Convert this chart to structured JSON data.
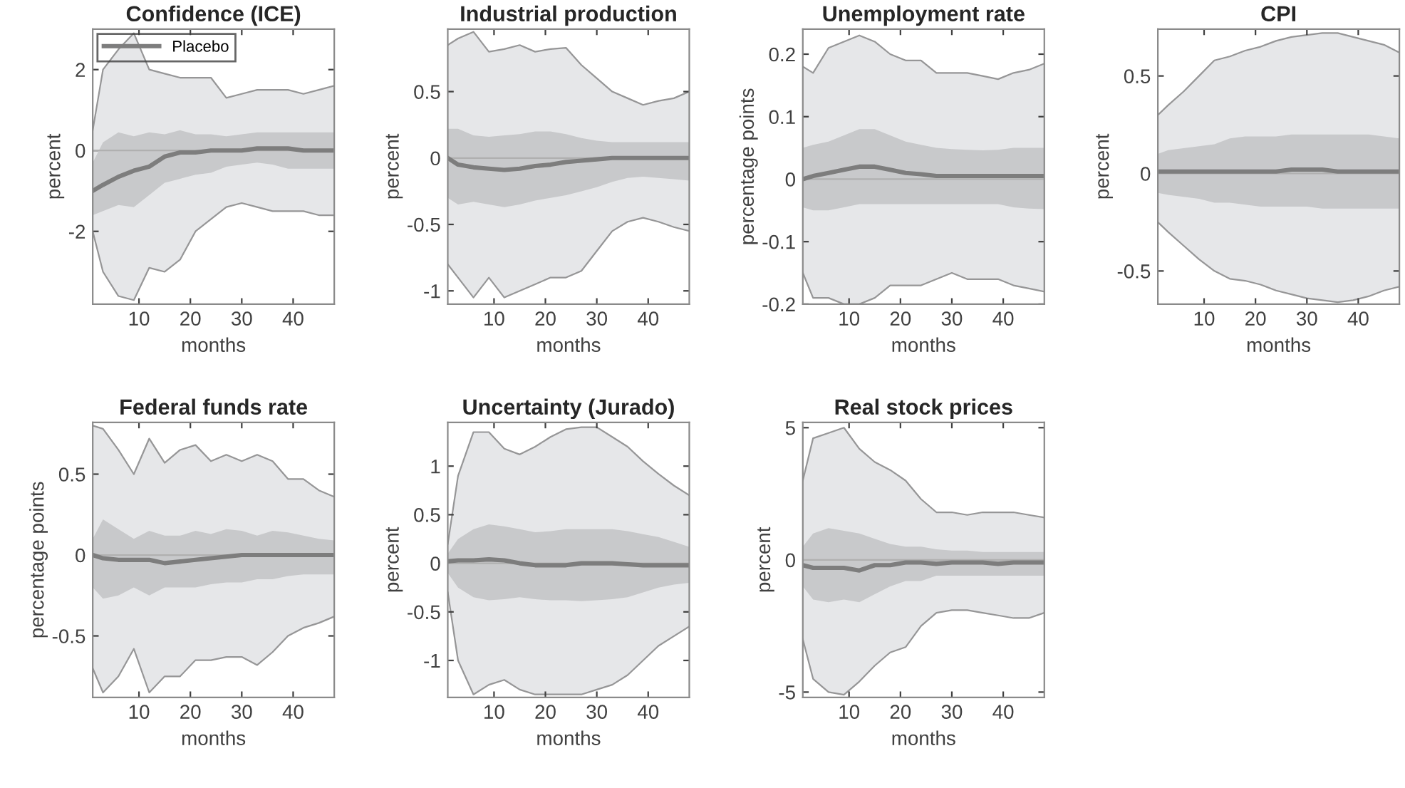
{
  "chart_data": [
    {
      "type": "line",
      "title": "Confidence (ICE)",
      "xlabel": "months",
      "ylabel": "percent",
      "x": [
        1,
        3,
        6,
        9,
        12,
        15,
        18,
        21,
        24,
        27,
        30,
        33,
        36,
        39,
        42,
        45,
        48
      ],
      "xlim": [
        1,
        48
      ],
      "xticks": [
        10,
        20,
        30,
        40
      ],
      "ylim": [
        -3.8,
        3.0
      ],
      "yticks": [
        -2,
        0,
        2
      ],
      "legend": "top left",
      "grid": false,
      "ref_lines": [
        {
          "axis": "y",
          "value": 0,
          "color": "#b0b0b0"
        }
      ],
      "series": [
        {
          "type": "area",
          "color": "#e6e7e9",
          "values": [
            0.5,
            2.0,
            2.5,
            2.9,
            2.0,
            1.9,
            1.8,
            1.8,
            1.8,
            1.3,
            1.4,
            1.5,
            1.5,
            1.5,
            1.4,
            1.5,
            1.6
          ]
        },
        {
          "type": "area",
          "color": "#e6e7e9",
          "values": [
            -2.0,
            -3.0,
            -3.6,
            -3.7,
            -2.9,
            -3.0,
            -2.7,
            -2.0,
            -1.7,
            -1.4,
            -1.3,
            -1.4,
            -1.5,
            -1.5,
            -1.5,
            -1.6,
            -1.6
          ]
        },
        {
          "name": "Placebo",
          "color": "#7d7d7d",
          "values": [
            -1.0,
            -0.85,
            -0.65,
            -0.5,
            -0.4,
            -0.15,
            -0.05,
            -0.05,
            0,
            0,
            0,
            0.05,
            0.05,
            0.05,
            0.0,
            0.0,
            0.0
          ],
          "lower": [
            -1.6,
            -1.5,
            -1.35,
            -1.4,
            -1.1,
            -0.8,
            -0.7,
            -0.6,
            -0.55,
            -0.4,
            -0.35,
            -0.3,
            -0.35,
            -0.45,
            -0.45,
            -0.45,
            -0.45
          ],
          "upper": [
            -0.3,
            0.2,
            0.45,
            0.35,
            0.45,
            0.4,
            0.5,
            0.4,
            0.4,
            0.35,
            0.4,
            0.45,
            0.45,
            0.45,
            0.45,
            0.45,
            0.45
          ]
        }
      ]
    },
    {
      "type": "line",
      "title": "Industrial production",
      "xlabel": "months",
      "ylabel": "percent",
      "x": [
        1,
        3,
        6,
        9,
        12,
        15,
        18,
        21,
        24,
        27,
        30,
        33,
        36,
        39,
        42,
        45,
        48
      ],
      "xlim": [
        1,
        48
      ],
      "xticks": [
        10,
        20,
        30,
        40
      ],
      "ylim": [
        -1.1,
        0.97
      ],
      "yticks": [
        -1,
        -0.5,
        0,
        0.5
      ],
      "grid": false,
      "ref_lines": [
        {
          "axis": "y",
          "value": 0,
          "color": "#b0b0b0"
        }
      ],
      "series": [
        {
          "type": "area",
          "color": "#e6e7e9",
          "values": [
            0.85,
            0.9,
            0.95,
            0.8,
            0.82,
            0.85,
            0.8,
            0.82,
            0.83,
            0.7,
            0.6,
            0.5,
            0.45,
            0.4,
            0.43,
            0.45,
            0.5
          ]
        },
        {
          "type": "area",
          "color": "#e6e7e9",
          "values": [
            -0.8,
            -0.9,
            -1.05,
            -0.9,
            -1.05,
            -1.0,
            -0.95,
            -0.9,
            -0.9,
            -0.85,
            -0.7,
            -0.55,
            -0.48,
            -0.45,
            -0.48,
            -0.52,
            -0.55
          ]
        },
        {
          "color": "#7d7d7d",
          "values": [
            0,
            -0.05,
            -0.07,
            -0.08,
            -0.09,
            -0.08,
            -0.06,
            -0.05,
            -0.03,
            -0.02,
            -0.01,
            0,
            0,
            0,
            0,
            0,
            0
          ],
          "lower": [
            -0.3,
            -0.35,
            -0.33,
            -0.35,
            -0.37,
            -0.35,
            -0.32,
            -0.3,
            -0.28,
            -0.25,
            -0.22,
            -0.18,
            -0.15,
            -0.14,
            -0.15,
            -0.16,
            -0.17
          ],
          "upper": [
            0.22,
            0.22,
            0.17,
            0.16,
            0.17,
            0.18,
            0.2,
            0.2,
            0.18,
            0.15,
            0.13,
            0.12,
            0.12,
            0.12,
            0.12,
            0.12,
            0.12
          ]
        }
      ]
    },
    {
      "type": "line",
      "title": "Unemployment rate",
      "xlabel": "months",
      "ylabel": "percentage points",
      "x": [
        1,
        3,
        6,
        9,
        12,
        15,
        18,
        21,
        24,
        27,
        30,
        33,
        36,
        39,
        42,
        45,
        48
      ],
      "xlim": [
        1,
        48
      ],
      "xticks": [
        10,
        20,
        30,
        40
      ],
      "ylim": [
        -0.2,
        0.24
      ],
      "yticks": [
        -0.2,
        -0.1,
        0,
        0.1,
        0.2
      ],
      "grid": false,
      "ref_lines": [
        {
          "axis": "y",
          "value": 0,
          "color": "#b0b0b0"
        }
      ],
      "series": [
        {
          "type": "area",
          "color": "#e6e7e9",
          "values": [
            0.18,
            0.17,
            0.21,
            0.22,
            0.23,
            0.22,
            0.2,
            0.19,
            0.19,
            0.17,
            0.17,
            0.17,
            0.165,
            0.16,
            0.17,
            0.175,
            0.185
          ]
        },
        {
          "type": "area",
          "color": "#e6e7e9",
          "values": [
            -0.15,
            -0.19,
            -0.19,
            -0.2,
            -0.2,
            -0.19,
            -0.17,
            -0.17,
            -0.17,
            -0.16,
            -0.15,
            -0.16,
            -0.16,
            -0.16,
            -0.17,
            -0.175,
            -0.18
          ]
        },
        {
          "color": "#7d7d7d",
          "values": [
            0,
            0.005,
            0.01,
            0.015,
            0.02,
            0.02,
            0.015,
            0.01,
            0.008,
            0.005,
            0.005,
            0.005,
            0.005,
            0.005,
            0.005,
            0.005,
            0.005
          ],
          "lower": [
            -0.045,
            -0.05,
            -0.05,
            -0.045,
            -0.04,
            -0.04,
            -0.04,
            -0.04,
            -0.04,
            -0.04,
            -0.04,
            -0.04,
            -0.04,
            -0.04,
            -0.045,
            -0.047,
            -0.048
          ],
          "upper": [
            0.05,
            0.055,
            0.06,
            0.07,
            0.08,
            0.08,
            0.07,
            0.06,
            0.055,
            0.05,
            0.048,
            0.047,
            0.046,
            0.047,
            0.05,
            0.05,
            0.05
          ]
        }
      ]
    },
    {
      "type": "line",
      "title": "CPI",
      "xlabel": "months",
      "ylabel": "percent",
      "x": [
        1,
        3,
        6,
        9,
        12,
        15,
        18,
        21,
        24,
        27,
        30,
        33,
        36,
        39,
        42,
        45,
        48
      ],
      "xlim": [
        1,
        48
      ],
      "xticks": [
        10,
        20,
        30,
        40
      ],
      "ylim": [
        -0.67,
        0.74
      ],
      "yticks": [
        -0.5,
        0,
        0.5
      ],
      "grid": false,
      "ref_lines": [
        {
          "axis": "y",
          "value": 0,
          "color": "#b0b0b0"
        }
      ],
      "series": [
        {
          "type": "area",
          "color": "#e6e7e9",
          "values": [
            0.3,
            0.35,
            0.42,
            0.5,
            0.58,
            0.6,
            0.63,
            0.65,
            0.68,
            0.7,
            0.71,
            0.72,
            0.72,
            0.7,
            0.68,
            0.66,
            0.62
          ]
        },
        {
          "type": "area",
          "color": "#e6e7e9",
          "values": [
            -0.25,
            -0.3,
            -0.37,
            -0.44,
            -0.5,
            -0.54,
            -0.55,
            -0.57,
            -0.6,
            -0.62,
            -0.64,
            -0.65,
            -0.66,
            -0.65,
            -0.63,
            -0.6,
            -0.58
          ]
        },
        {
          "color": "#7d7d7d",
          "values": [
            0.01,
            0.01,
            0.01,
            0.01,
            0.01,
            0.01,
            0.01,
            0.01,
            0.01,
            0.02,
            0.02,
            0.02,
            0.01,
            0.01,
            0.01,
            0.01,
            0.01
          ],
          "lower": [
            -0.1,
            -0.11,
            -0.12,
            -0.13,
            -0.15,
            -0.15,
            -0.16,
            -0.17,
            -0.17,
            -0.17,
            -0.17,
            -0.18,
            -0.18,
            -0.18,
            -0.18,
            -0.18,
            -0.18
          ],
          "upper": [
            0.1,
            0.12,
            0.13,
            0.14,
            0.15,
            0.18,
            0.19,
            0.19,
            0.19,
            0.2,
            0.2,
            0.2,
            0.2,
            0.2,
            0.2,
            0.19,
            0.18
          ]
        }
      ]
    },
    {
      "type": "line",
      "title": "Federal funds rate",
      "xlabel": "months",
      "ylabel": "percentage points",
      "x": [
        1,
        3,
        6,
        9,
        12,
        15,
        18,
        21,
        24,
        27,
        30,
        33,
        36,
        39,
        42,
        45,
        48
      ],
      "xlim": [
        1,
        48
      ],
      "xticks": [
        10,
        20,
        30,
        40
      ],
      "ylim": [
        -0.88,
        0.82
      ],
      "yticks": [
        -0.5,
        0,
        0.5
      ],
      "grid": false,
      "ref_lines": [
        {
          "axis": "y",
          "value": 0,
          "color": "#b0b0b0"
        }
      ],
      "series": [
        {
          "type": "area",
          "color": "#e6e7e9",
          "values": [
            0.8,
            0.78,
            0.65,
            0.5,
            0.72,
            0.57,
            0.65,
            0.68,
            0.58,
            0.62,
            0.58,
            0.62,
            0.58,
            0.47,
            0.47,
            0.4,
            0.36
          ]
        },
        {
          "type": "area",
          "color": "#e6e7e9",
          "values": [
            -0.7,
            -0.85,
            -0.75,
            -0.58,
            -0.85,
            -0.75,
            -0.75,
            -0.65,
            -0.65,
            -0.63,
            -0.63,
            -0.68,
            -0.6,
            -0.5,
            -0.45,
            -0.42,
            -0.38
          ]
        },
        {
          "color": "#7d7d7d",
          "values": [
            0,
            -0.02,
            -0.03,
            -0.03,
            -0.03,
            -0.05,
            -0.04,
            -0.03,
            -0.02,
            -0.01,
            0,
            0,
            0,
            0,
            0,
            0,
            0
          ],
          "lower": [
            -0.2,
            -0.27,
            -0.25,
            -0.2,
            -0.25,
            -0.2,
            -0.2,
            -0.2,
            -0.18,
            -0.17,
            -0.17,
            -0.15,
            -0.15,
            -0.13,
            -0.12,
            -0.12,
            -0.12
          ],
          "upper": [
            0.1,
            0.22,
            0.16,
            0.1,
            0.15,
            0.12,
            0.12,
            0.15,
            0.13,
            0.16,
            0.15,
            0.12,
            0.15,
            0.14,
            0.12,
            0.1,
            0.09
          ]
        }
      ]
    },
    {
      "type": "line",
      "title": "Uncertainty (Jurado)",
      "xlabel": "months",
      "ylabel": "percent",
      "x": [
        1,
        3,
        6,
        9,
        12,
        15,
        18,
        21,
        24,
        27,
        30,
        33,
        36,
        39,
        42,
        45,
        48
      ],
      "xlim": [
        1,
        48
      ],
      "xticks": [
        10,
        20,
        30,
        40
      ],
      "ylim": [
        -1.38,
        1.45
      ],
      "yticks": [
        -1,
        -0.5,
        0,
        0.5,
        1
      ],
      "grid": false,
      "ref_lines": [
        {
          "axis": "y",
          "value": 0,
          "color": "#b0b0b0"
        }
      ],
      "series": [
        {
          "type": "area",
          "color": "#e6e7e9",
          "values": [
            0.2,
            0.9,
            1.35,
            1.35,
            1.18,
            1.12,
            1.2,
            1.3,
            1.38,
            1.4,
            1.4,
            1.3,
            1.2,
            1.05,
            0.92,
            0.8,
            0.7
          ]
        },
        {
          "type": "area",
          "color": "#e6e7e9",
          "values": [
            -0.3,
            -1.0,
            -1.35,
            -1.25,
            -1.2,
            -1.3,
            -1.35,
            -1.35,
            -1.35,
            -1.35,
            -1.3,
            -1.25,
            -1.15,
            -1.0,
            -0.85,
            -0.75,
            -0.65
          ]
        },
        {
          "color": "#7d7d7d",
          "values": [
            0.02,
            0.03,
            0.03,
            0.04,
            0.03,
            0,
            -0.02,
            -0.02,
            -0.02,
            0,
            0,
            0,
            -0.01,
            -0.02,
            -0.02,
            -0.02,
            -0.02
          ],
          "lower": [
            -0.1,
            -0.25,
            -0.35,
            -0.38,
            -0.37,
            -0.35,
            -0.37,
            -0.38,
            -0.38,
            -0.39,
            -0.38,
            -0.37,
            -0.35,
            -0.3,
            -0.25,
            -0.22,
            -0.2
          ],
          "upper": [
            0.1,
            0.25,
            0.35,
            0.4,
            0.38,
            0.35,
            0.32,
            0.33,
            0.35,
            0.35,
            0.35,
            0.35,
            0.33,
            0.3,
            0.27,
            0.22,
            0.17
          ]
        }
      ]
    },
    {
      "type": "line",
      "title": "Real stock prices",
      "xlabel": "months",
      "ylabel": "percent",
      "x": [
        1,
        3,
        6,
        9,
        12,
        15,
        18,
        21,
        24,
        27,
        30,
        33,
        36,
        39,
        42,
        45,
        48
      ],
      "xlim": [
        1,
        48
      ],
      "xticks": [
        10,
        20,
        30,
        40
      ],
      "ylim": [
        -5.2,
        5.2
      ],
      "yticks": [
        -5,
        0,
        5
      ],
      "grid": false,
      "ref_lines": [
        {
          "axis": "y",
          "value": 0,
          "color": "#b0b0b0"
        }
      ],
      "series": [
        {
          "type": "area",
          "color": "#e6e7e9",
          "values": [
            3.0,
            4.6,
            4.8,
            5.0,
            4.2,
            3.7,
            3.4,
            3.0,
            2.3,
            1.8,
            1.8,
            1.7,
            1.8,
            1.8,
            1.8,
            1.7,
            1.6
          ]
        },
        {
          "type": "area",
          "color": "#e6e7e9",
          "values": [
            -3.0,
            -4.5,
            -5.0,
            -5.1,
            -4.6,
            -4.0,
            -3.5,
            -3.3,
            -2.5,
            -2.0,
            -1.9,
            -1.9,
            -2.0,
            -2.1,
            -2.2,
            -2.2,
            -2.0
          ]
        },
        {
          "color": "#7d7d7d",
          "values": [
            -0.2,
            -0.3,
            -0.3,
            -0.3,
            -0.4,
            -0.2,
            -0.2,
            -0.1,
            -0.1,
            -0.15,
            -0.1,
            -0.1,
            -0.1,
            -0.15,
            -0.1,
            -0.1,
            -0.1
          ],
          "lower": [
            -1.0,
            -1.5,
            -1.6,
            -1.5,
            -1.6,
            -1.3,
            -1.0,
            -0.8,
            -0.8,
            -0.6,
            -0.6,
            -0.6,
            -0.6,
            -0.6,
            -0.6,
            -0.6,
            -0.6
          ],
          "upper": [
            0.5,
            1.0,
            1.2,
            1.1,
            1.0,
            0.8,
            0.6,
            0.5,
            0.5,
            0.4,
            0.35,
            0.35,
            0.3,
            0.3,
            0.3,
            0.3,
            0.3
          ]
        }
      ]
    }
  ]
}
